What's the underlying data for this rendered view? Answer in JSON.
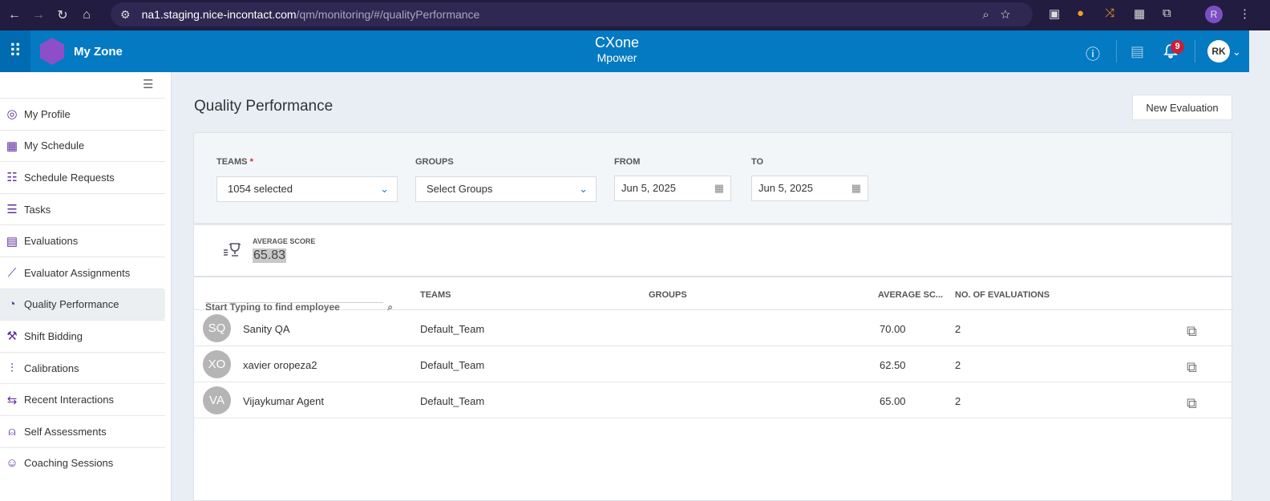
{
  "browser": {
    "url_host": "na1.staging.nice-incontact.com",
    "url_path": "/qm/monitoring/#/qualityPerformance",
    "profile": "R"
  },
  "header": {
    "app": "My Zone",
    "logo_top": "CXone",
    "logo_bottom": "Mpower",
    "notifications": "9",
    "user": "RK",
    "accent": "#037ac2"
  },
  "sidebar": {
    "items": [
      {
        "label": "My Profile",
        "icon": "profile-icon"
      },
      {
        "label": "My Schedule",
        "icon": "calendar-icon"
      },
      {
        "label": "Schedule Requests",
        "icon": "schedule-request-icon"
      },
      {
        "label": "Tasks",
        "icon": "tasks-icon"
      },
      {
        "label": "Evaluations",
        "icon": "evaluations-icon"
      },
      {
        "label": "Evaluator Assignments",
        "icon": "chart-icon"
      },
      {
        "label": "Quality Performance",
        "icon": "gauge-icon"
      },
      {
        "label": "Shift Bidding",
        "icon": "gavel-icon"
      },
      {
        "label": "Calibrations",
        "icon": "sliders-icon"
      },
      {
        "label": "Recent Interactions",
        "icon": "interactions-icon"
      },
      {
        "label": "Self Assessments",
        "icon": "user-icon"
      },
      {
        "label": "Coaching Sessions",
        "icon": "coaching-icon"
      }
    ]
  },
  "page": {
    "title": "Quality Performance",
    "new_evaluation": "New Evaluation"
  },
  "filters": {
    "teams_label": "TEAMS",
    "required": "*",
    "teams_value": "1054 selected",
    "groups_label": "GROUPS",
    "groups_value": "Select Groups",
    "from_label": "FROM",
    "from_value": "Jun 5, 2025",
    "to_label": "TO",
    "to_value": "Jun 5, 2025"
  },
  "score": {
    "label": "AVERAGE SCORE",
    "value": "65.83"
  },
  "table": {
    "search_placeholder": "Start Typing to find employee",
    "columns": [
      "TEAMS",
      "GROUPS",
      "AVERAGE SC...",
      "NO. OF EVALUATIONS"
    ],
    "rows": [
      {
        "initials": "SQ",
        "name": "Sanity QA",
        "team": "Default_Team",
        "groups": "",
        "avg": "70.00",
        "evals": "2"
      },
      {
        "initials": "XO",
        "name": "xavier oropeza2",
        "team": "Default_Team",
        "groups": "",
        "avg": "62.50",
        "evals": "2"
      },
      {
        "initials": "VA",
        "name": "Vijaykumar Agent",
        "team": "Default_Team",
        "groups": "",
        "avg": "65.00",
        "evals": "2"
      }
    ]
  }
}
